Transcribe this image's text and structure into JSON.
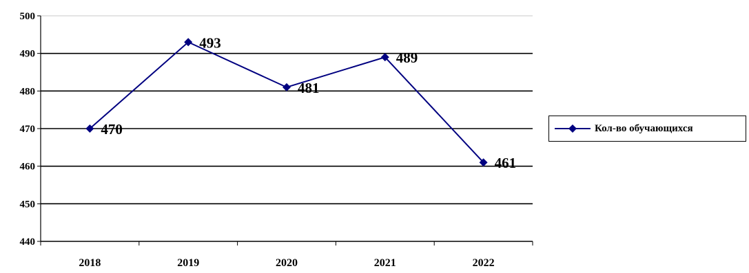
{
  "chart_data": {
    "type": "line",
    "categories": [
      "2018",
      "2019",
      "2020",
      "2021",
      "2022"
    ],
    "series": [
      {
        "name": "Кол-во обучающихся",
        "values": [
          470,
          493,
          481,
          489,
          461
        ],
        "data_labels": [
          "470",
          "493",
          "481",
          "489",
          "461"
        ],
        "color": "#000080",
        "marker": "diamond"
      }
    ],
    "y_ticks": [
      "440",
      "450",
      "460",
      "470",
      "480",
      "490",
      "500"
    ],
    "ylim": [
      440,
      500
    ],
    "grid": true,
    "legend": "right",
    "title": "",
    "xlabel": "",
    "ylabel": ""
  }
}
